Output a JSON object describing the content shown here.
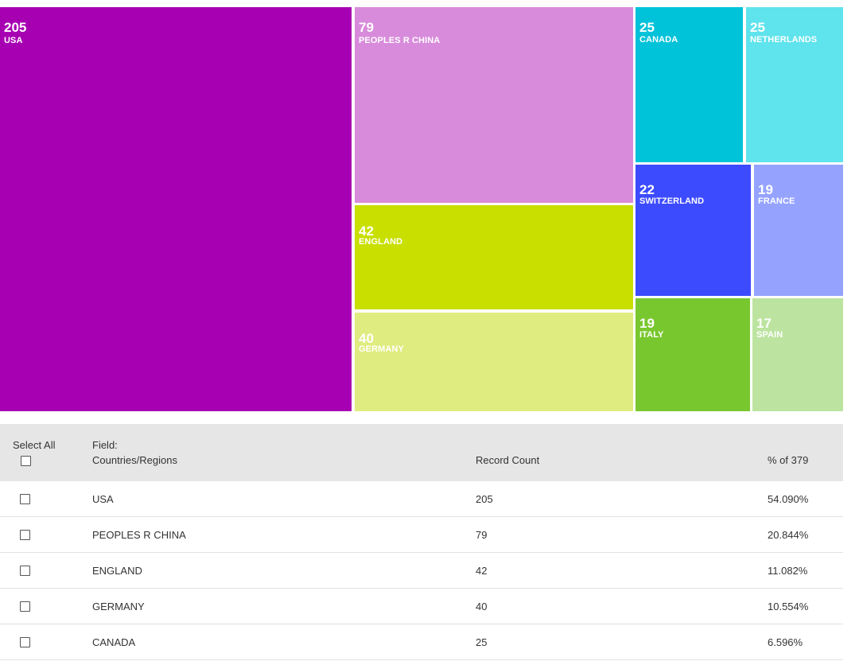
{
  "treemap": {
    "colors": {
      "USA": "#a700b3",
      "PEOPLES R CHINA": "#d88bdb",
      "ENGLAND": "#c8df00",
      "GERMANY": "#dfec80",
      "CANADA": "#00c2d9",
      "NETHERLANDS": "#5fe3ec",
      "SWITZERLAND": "#3d4bff",
      "FRANCE": "#95a3ff",
      "ITALY": "#79c72f",
      "SPAIN": "#bce4a0"
    },
    "tiles": [
      {
        "value": "205",
        "label": "USA"
      },
      {
        "value": "79",
        "label": "PEOPLES R CHINA"
      },
      {
        "value": "42",
        "label": "ENGLAND"
      },
      {
        "value": "40",
        "label": "GERMANY"
      },
      {
        "value": "25",
        "label": "CANADA"
      },
      {
        "value": "25",
        "label": "NETHERLANDS"
      },
      {
        "value": "22",
        "label": "SWITZERLAND"
      },
      {
        "value": "19",
        "label": "FRANCE"
      },
      {
        "value": "19",
        "label": "ITALY"
      },
      {
        "value": "17",
        "label": "SPAIN"
      }
    ]
  },
  "table": {
    "select_all_label": "Select All",
    "field_label": "Field:",
    "field_value": "Countries/Regions",
    "record_count_label": "Record Count",
    "percent_label": "% of 379",
    "rows": [
      {
        "name": "USA",
        "count": "205",
        "percent": "54.090%"
      },
      {
        "name": "PEOPLES R CHINA",
        "count": "79",
        "percent": "20.844%"
      },
      {
        "name": "ENGLAND",
        "count": "42",
        "percent": "11.082%"
      },
      {
        "name": "GERMANY",
        "count": "40",
        "percent": "10.554%"
      },
      {
        "name": "CANADA",
        "count": "25",
        "percent": "6.596%"
      }
    ]
  }
}
